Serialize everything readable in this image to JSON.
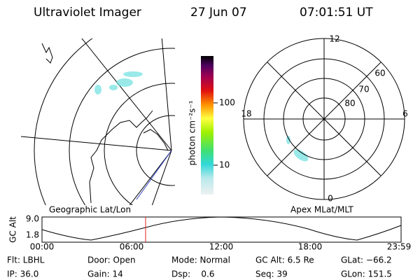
{
  "header": {
    "title": "Ultraviolet Imager",
    "date": "27 Jun 07",
    "time": "07:01:51 UT"
  },
  "colorbar": {
    "label": "photon cm⁻²s⁻¹",
    "ticks": [
      100,
      10
    ]
  },
  "polar": {
    "mlt_labels": [
      "12",
      "18",
      "6",
      "0"
    ],
    "lat_labels": [
      "60",
      "70",
      "80"
    ]
  },
  "panel_labels": [
    "Geographic Lat/Lon",
    "Apex MLat/MLT"
  ],
  "altitude_plot": {
    "ylabel": "GC Alt",
    "yticks": [
      "9.0",
      "1.8"
    ],
    "xticks": [
      "00:00",
      "06:00",
      "12:00",
      "18:00",
      "23:59"
    ]
  },
  "info": [
    [
      "Flt: LBHL",
      "Door: Open",
      "Mode: Normal",
      "GC Alt: 6.5 Re",
      "GLat: −66.2"
    ],
    [
      "IP: 36.0",
      "Gain: 14",
      "Dsp:    0.6",
      "Seq: 39",
      "GLon: 151.5"
    ]
  ]
}
